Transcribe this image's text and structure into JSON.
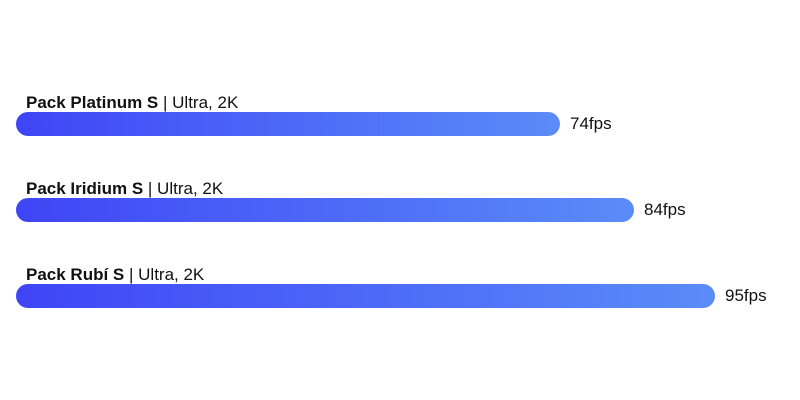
{
  "chart_data": {
    "type": "bar",
    "orientation": "horizontal",
    "categories": [
      "Pack Platinum S",
      "Pack Iridium S",
      "Pack Rubí S"
    ],
    "specs": [
      "Ultra, 2K",
      "Ultra, 2K",
      "Ultra, 2K"
    ],
    "values": [
      74,
      84,
      95
    ],
    "value_labels": [
      "74fps",
      "84fps",
      "95fps"
    ],
    "unit": "fps",
    "separator": "|",
    "title": "",
    "xlabel": "",
    "ylabel": "",
    "xlim": [
      0,
      95
    ],
    "grid": false,
    "legend": "none",
    "colors": {
      "bar_start": "#3f45f6",
      "bar_end": "#5a8cf8",
      "text": "#111111"
    }
  }
}
